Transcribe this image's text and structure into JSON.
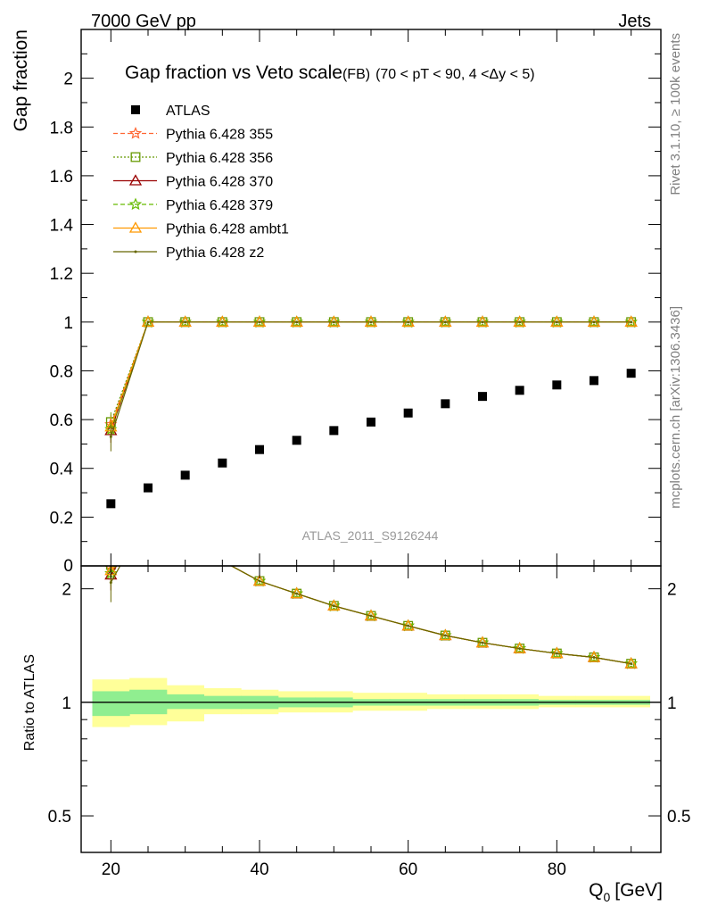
{
  "header": {
    "left": "7000 GeV pp",
    "right": "Jets"
  },
  "chart_data": {
    "type": "scatter",
    "title": "Gap fraction vs Veto scale",
    "subtitle_tag": "(FB)",
    "subtitle": "(70 < pT <  90, 4 <Δy < 5)",
    "ylabel": "Gap fraction",
    "ratio_ylabel": "Ratio to ATLAS",
    "xlabel": "Q",
    "xlabel_sub": "0",
    "xlabel_unit": "[GeV]",
    "watermark": "ATLAS_2011_S9126244",
    "side_label_top": "Rivet 3.1.10, ≥ 100k events",
    "side_label_bottom": "mcplots.cern.ch [arXiv:1306.3436]",
    "xlim": [
      16,
      94
    ],
    "ylim": [
      0,
      2.2
    ],
    "ratio_ylim": [
      0.4,
      2.3
    ],
    "ratio_log_scale": true,
    "grid": false,
    "legend_position": "top-left",
    "x_ticks": [
      20,
      40,
      60,
      80
    ],
    "y_ticks": [
      0.2,
      0.4,
      0.6,
      0.8,
      1,
      1.2,
      1.4,
      1.6,
      1.8,
      2
    ],
    "y_bottom_tick_label": "0",
    "ratio_y_ticks": [
      0.5,
      1,
      2
    ],
    "x": [
      20,
      25,
      30,
      35,
      40,
      45,
      50,
      55,
      60,
      65,
      70,
      75,
      80,
      85,
      90
    ],
    "bin_edges": [
      17.5,
      22.5,
      27.5,
      32.5,
      37.5,
      42.5,
      47.5,
      52.5,
      57.5,
      62.5,
      67.5,
      72.5,
      77.5,
      82.5,
      87.5,
      92.5
    ],
    "data_series": {
      "name": "ATLAS",
      "color": "#000000",
      "values": [
        0.255,
        0.32,
        0.372,
        0.422,
        0.477,
        0.515,
        0.555,
        0.59,
        0.627,
        0.665,
        0.695,
        0.72,
        0.742,
        0.76,
        0.79
      ]
    },
    "ratio_band_inner": [
      [
        0.92,
        1.07
      ],
      [
        0.93,
        1.08
      ],
      [
        0.96,
        1.05
      ],
      [
        0.96,
        1.04
      ],
      [
        0.96,
        1.04
      ],
      [
        0.97,
        1.03
      ],
      [
        0.97,
        1.03
      ],
      [
        0.98,
        1.02
      ],
      [
        0.98,
        1.02
      ],
      [
        0.98,
        1.02
      ],
      [
        0.98,
        1.02
      ],
      [
        0.98,
        1.02
      ],
      [
        0.985,
        1.015
      ],
      [
        0.985,
        1.015
      ],
      [
        0.985,
        1.015
      ]
    ],
    "ratio_band_outer": [
      [
        0.86,
        1.15
      ],
      [
        0.87,
        1.16
      ],
      [
        0.89,
        1.11
      ],
      [
        0.93,
        1.09
      ],
      [
        0.93,
        1.08
      ],
      [
        0.94,
        1.07
      ],
      [
        0.94,
        1.07
      ],
      [
        0.95,
        1.06
      ],
      [
        0.95,
        1.06
      ],
      [
        0.96,
        1.05
      ],
      [
        0.96,
        1.05
      ],
      [
        0.96,
        1.05
      ],
      [
        0.97,
        1.04
      ],
      [
        0.97,
        1.04
      ],
      [
        0.97,
        1.04
      ]
    ],
    "band_colors": {
      "inner": "#90EE90",
      "outer": "#FFFF99"
    },
    "mc_series": [
      {
        "name": "Pythia 6.428 355",
        "color": "#FF6633",
        "dash": "5,3",
        "marker": "star",
        "first": 0.58
      },
      {
        "name": "Pythia 6.428 356",
        "color": "#669900",
        "dash": "2,2",
        "marker": "square",
        "first": 0.59
      },
      {
        "name": "Pythia 6.428 370",
        "color": "#990000",
        "dash": "",
        "marker": "triangle",
        "first": 0.555
      },
      {
        "name": "Pythia 6.428 379",
        "color": "#66BB00",
        "dash": "5,3",
        "marker": "star",
        "first": 0.56
      },
      {
        "name": "Pythia 6.428 ambt1",
        "color": "#FF9900",
        "dash": "",
        "marker": "triangle",
        "first": 0.57
      },
      {
        "name": "Pythia 6.428 z2",
        "color": "#666600",
        "dash": "",
        "marker": "dot",
        "first": 0.53
      }
    ],
    "mc_plateau_value": 1.0,
    "first_bin_errors": [
      0.04,
      0.04,
      0.05,
      0.04,
      0.04,
      0.06
    ]
  }
}
